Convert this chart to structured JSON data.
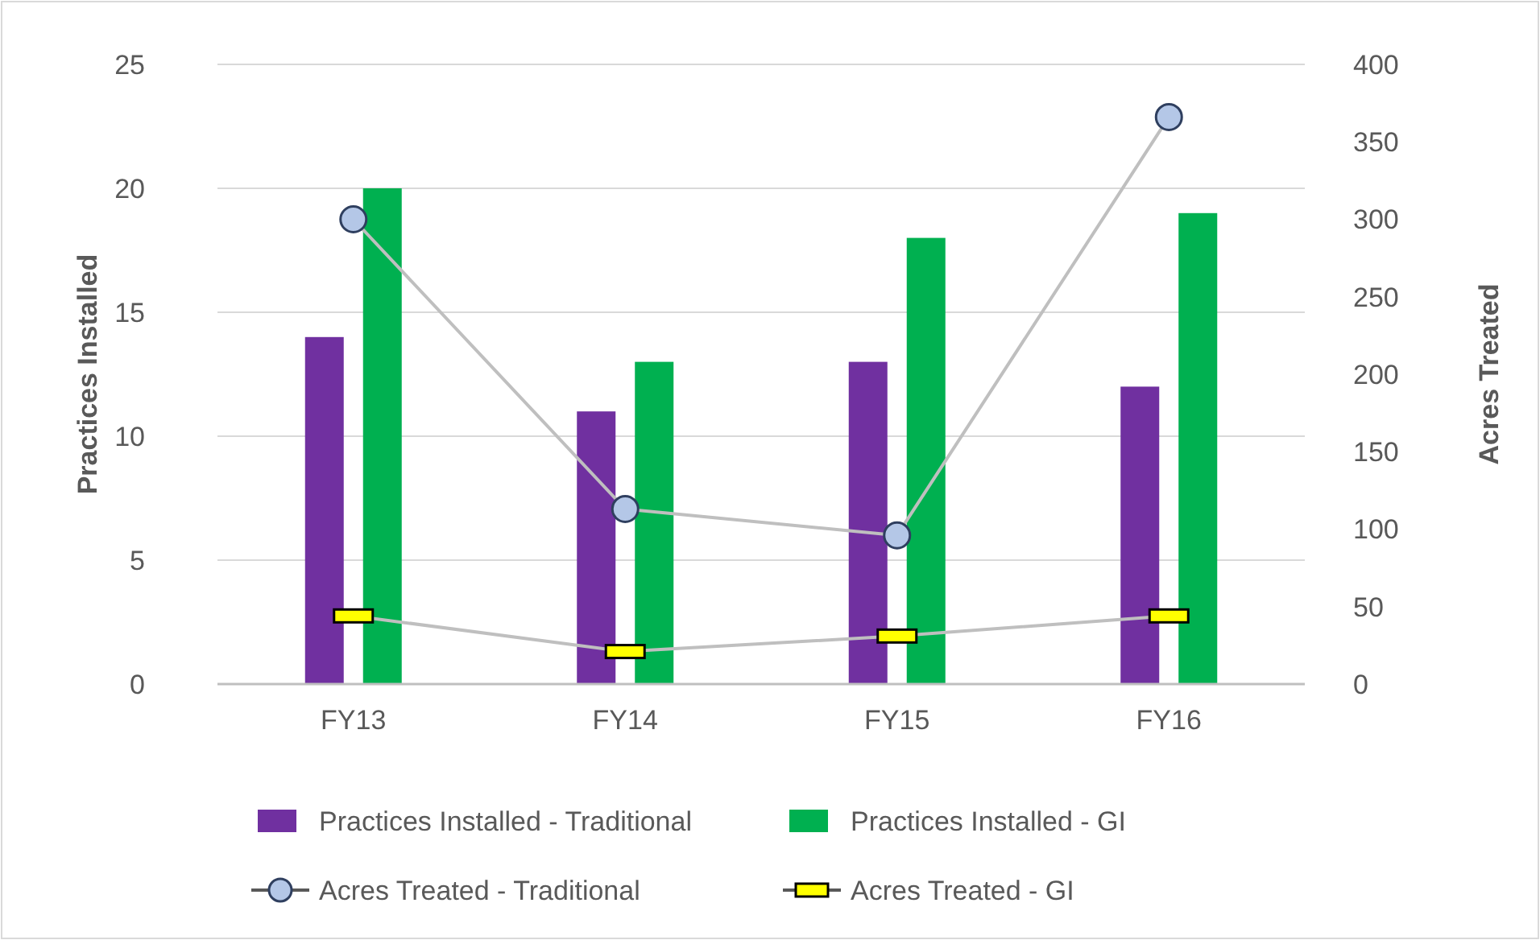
{
  "chart_data": {
    "type": "bar",
    "categories": [
      "FY13",
      "FY14",
      "FY15",
      "FY16"
    ],
    "ylabel": "Practices Installed",
    "y2label": "Acres Treated",
    "ylim": [
      0,
      25
    ],
    "yticks": [
      0,
      5,
      10,
      15,
      20,
      25
    ],
    "y2lim": [
      0,
      400
    ],
    "y2ticks": [
      0,
      50,
      100,
      150,
      200,
      250,
      300,
      350,
      400
    ],
    "grid": "y",
    "legend": "bottom",
    "series": [
      {
        "name": "Practices Installed - Traditional",
        "color": "#7030a0",
        "values": [
          14,
          11,
          13,
          12
        ]
      },
      {
        "name": "Practices Installed - GI",
        "color": "#00b050",
        "values": [
          20,
          13,
          18,
          19
        ]
      },
      {
        "name": "Acres Treated - Traditional",
        "type": "line",
        "axis": "y2",
        "marker": "circle",
        "color": "#b4c7e7",
        "values": [
          300,
          113,
          96,
          366
        ]
      },
      {
        "name": "Acres Treated - GI",
        "type": "line",
        "axis": "y2",
        "marker": "square",
        "color": "#ffff00",
        "values": [
          44,
          21,
          31,
          44
        ]
      }
    ]
  }
}
